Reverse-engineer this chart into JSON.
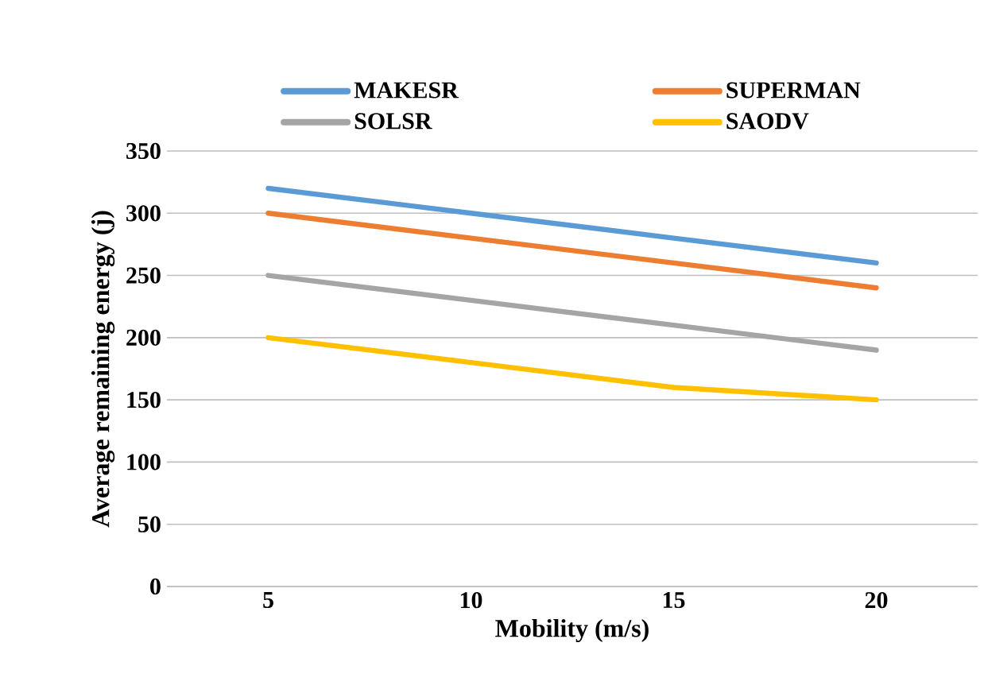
{
  "chart_data": {
    "type": "line",
    "xlabel": "Mobility (m/s)",
    "ylabel": "Average remaining energy (j)",
    "categories": [
      "5",
      "10",
      "15",
      "20"
    ],
    "series": [
      {
        "name": "MAKESR",
        "color": "#5b9bd5",
        "values": [
          320,
          300,
          280,
          260
        ]
      },
      {
        "name": "SUPERMAN",
        "color": "#ed7d31",
        "values": [
          300,
          280,
          260,
          240
        ]
      },
      {
        "name": "SOLSR",
        "color": "#a5a5a5",
        "values": [
          250,
          230,
          210,
          190
        ]
      },
      {
        "name": "SAODV",
        "color": "#ffc000",
        "values": [
          200,
          180,
          160,
          150
        ]
      }
    ],
    "ylim": [
      0,
      350
    ],
    "yticks": [
      0,
      50,
      100,
      150,
      200,
      250,
      300,
      350
    ],
    "grid": "y",
    "legend": "top",
    "marker": "none",
    "line_style": "solid"
  }
}
